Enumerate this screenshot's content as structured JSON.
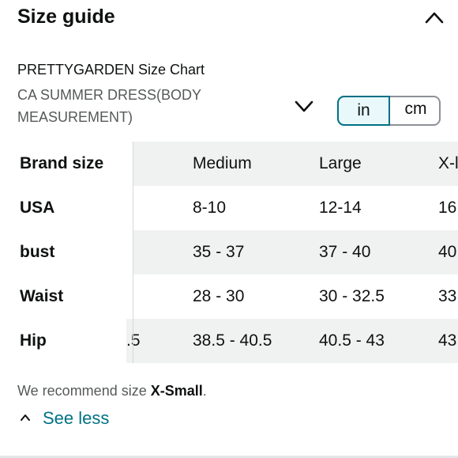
{
  "header": {
    "title": "Size guide",
    "collapse_icon": "chevron-up-icon"
  },
  "chart": {
    "brand_line": "PRETTYGARDEN Size Chart",
    "dress_select": "CA SUMMER DRESS(BODY MEASUREMENT)",
    "dress_select_icon": "chevron-down-icon"
  },
  "units": {
    "in": "in",
    "cm": "cm",
    "selected": "in"
  },
  "table": {
    "header": {
      "label": "Brand size",
      "cells": [
        "",
        "Medium",
        "Large",
        "X-l"
      ]
    },
    "rows": [
      {
        "label": "USA",
        "cells": [
          "",
          "8-10",
          "12-14",
          "16"
        ]
      },
      {
        "label": "bust",
        "cells": [
          "",
          "35 - 37",
          "37 - 40",
          "40"
        ]
      },
      {
        "label": "Waist",
        "cells": [
          "",
          "28 - 30",
          "30 - 32.5",
          "33"
        ]
      },
      {
        "label": "Hip",
        "cells": [
          ".5",
          "38.5 - 40.5",
          "40.5 - 43",
          "43"
        ]
      }
    ]
  },
  "recommendation": {
    "prefix": "We recommend size ",
    "size": "X-Small",
    "suffix": "."
  },
  "see_less": {
    "label": "See less",
    "icon": "chevron-up-icon"
  },
  "colors": {
    "link": "#007185",
    "muted": "#565959",
    "row_shade": "#f0f2f2",
    "toggle_active_bg": "#e8f8fb"
  }
}
